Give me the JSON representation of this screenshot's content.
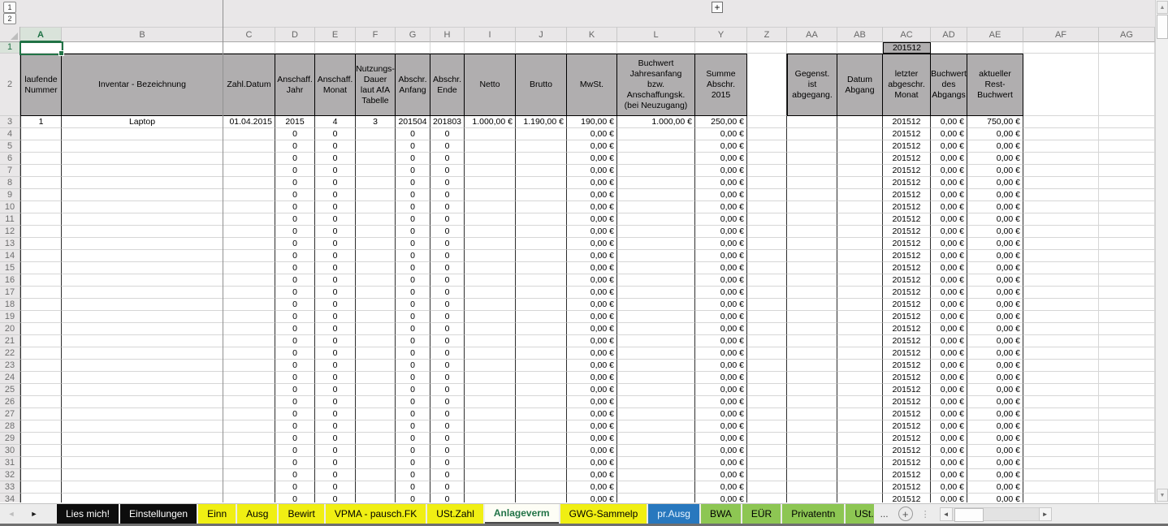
{
  "outline": {
    "level_buttons": [
      "1",
      "2"
    ],
    "expand_button": "+"
  },
  "grid": {
    "columns": [
      "A",
      "B",
      "C",
      "D",
      "E",
      "F",
      "G",
      "H",
      "I",
      "J",
      "K",
      "L",
      "Y",
      "Z",
      "AA",
      "AB",
      "AC",
      "AD",
      "AE",
      "AF",
      "AG"
    ],
    "selected_column": "A",
    "selected_row": "1",
    "selected_cell": "A1",
    "row1_values": {
      "AC": "201512"
    },
    "header_labels": {
      "A": "laufende\nNummer",
      "B": "Inventar - Bezeichnung",
      "C": "Zahl.Datum",
      "D": "Anschaff.\nJahr",
      "E": "Anschaff.\nMonat",
      "F": "Nutzungs-\nDauer\nlaut AfA\nTabelle",
      "G": "Abschr.\nAnfang",
      "H": "Abschr.\nEnde",
      "I": "Netto",
      "J": "Brutto",
      "K": "MwSt.",
      "L": "Buchwert\nJahresanfang\nbzw. Anschaffungsk.\n(bei Neuzugang)",
      "Y": "Summe\nAbschr.\n2015",
      "AA": "Gegenst.\nist\nabgegang.",
      "AB": "Datum\nAbgang",
      "AC": "letzter\nabgeschr.\nMonat",
      "AD": "Buchwert\ndes\nAbgangs",
      "AE": "aktueller\nRest-\nBuchwert"
    },
    "rows": {
      "first": {
        "num": 3,
        "cells": {
          "A": "1",
          "B": "Laptop",
          "C": "01.04.2015",
          "D": "2015",
          "E": "4",
          "F": "3",
          "G": "201504",
          "H": "201803",
          "I": "1.000,00 €",
          "J": "1.190,00 €",
          "K": "190,00 €",
          "L": "1.000,00 €",
          "Y": "250,00 €",
          "AC": "201512",
          "AD": "0,00 €",
          "AE": "750,00 €"
        }
      },
      "empty_template": {
        "D": "0",
        "E": "0",
        "G": "0",
        "H": "0",
        "K": "0,00 €",
        "Y": "0,00 €",
        "AC": "201512",
        "AD": "0,00 €",
        "AE": "0,00 €"
      },
      "empty_range": {
        "from": 4,
        "to": 34
      }
    }
  },
  "tabbar": {
    "nav_prev": "◄",
    "nav_next": "►",
    "tabs": [
      {
        "label": "Lies mich!",
        "style": "black"
      },
      {
        "label": "Einstellungen",
        "style": "black"
      },
      {
        "label": "Einn",
        "style": "yellow"
      },
      {
        "label": "Ausg",
        "style": "yellow"
      },
      {
        "label": "Bewirt",
        "style": "yellow"
      },
      {
        "label": "VPMA - pausch.FK",
        "style": "yellow"
      },
      {
        "label": "USt.Zahl",
        "style": "yellow"
      },
      {
        "label": "Anlageverm",
        "style": "active"
      },
      {
        "label": "GWG-Sammelp",
        "style": "yellow"
      },
      {
        "label": "pr.Ausg",
        "style": "blue"
      },
      {
        "label": "BWA",
        "style": "green"
      },
      {
        "label": "EÜR",
        "style": "green"
      },
      {
        "label": "Privatentn",
        "style": "green"
      },
      {
        "label": "USt.",
        "style": "green-truncated"
      }
    ],
    "overflow_ellipsis": "...",
    "add_sheet": "+",
    "splitter": "⋮"
  },
  "scrollbars": {
    "up": "▲",
    "down": "▼",
    "left": "◄",
    "right": "►"
  },
  "colors": {
    "accent_green": "#217346",
    "header_gray": "#b0aeaf",
    "tab_yellow": "#f0ef13",
    "tab_green": "#8dc653",
    "tab_blue": "#2878be",
    "tab_black": "#0d0d0d"
  }
}
